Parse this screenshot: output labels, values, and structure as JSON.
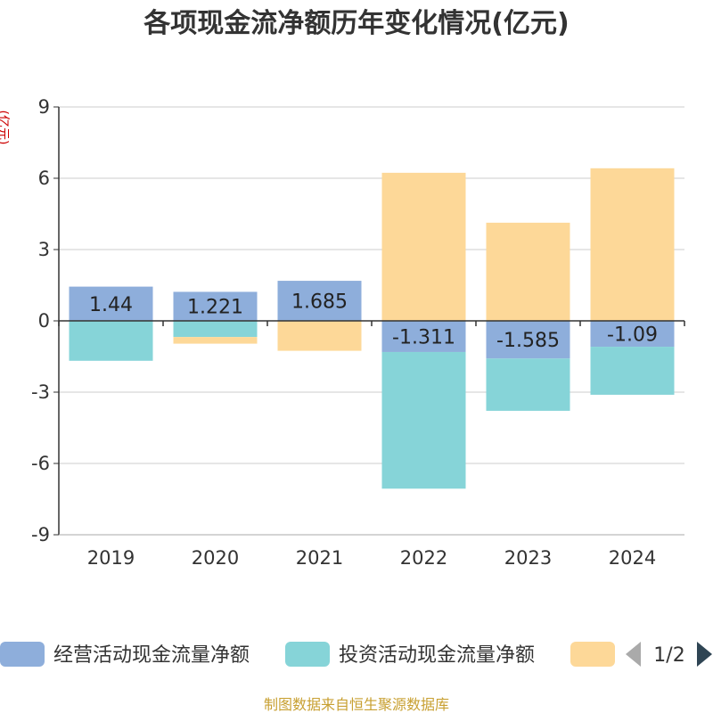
{
  "chart_data": {
    "type": "bar",
    "stacked": true,
    "title": "各项现金流净额历年变化情况(亿元)",
    "ylabel": "(亿元)",
    "xlabel": "",
    "categories": [
      "2019",
      "2020",
      "2021",
      "2022",
      "2023",
      "2024"
    ],
    "ylim": [
      -9,
      9
    ],
    "yticks": [
      9,
      6,
      3,
      0,
      -3,
      -6,
      -9
    ],
    "series": [
      {
        "name": "经营活动现金流量净额",
        "color": "#8eaedb",
        "values": [
          1.44,
          1.221,
          1.685,
          -1.311,
          -1.585,
          -1.09
        ],
        "labels": [
          "1.44",
          "1.221",
          "1.685",
          "-1.311",
          "-1.585",
          "-1.09"
        ]
      },
      {
        "name": "投资活动现金流量净额",
        "color": "#86d4d8",
        "values": [
          -1.68,
          -0.68,
          0,
          -5.75,
          -2.2,
          -2.02
        ]
      },
      {
        "name": "",
        "color": "#fdd898",
        "values": [
          0,
          -0.28,
          -1.26,
          6.23,
          4.13,
          6.42
        ]
      }
    ],
    "legend": {
      "page": "1/2"
    },
    "source": "制图数据来自恒生聚源数据库"
  }
}
